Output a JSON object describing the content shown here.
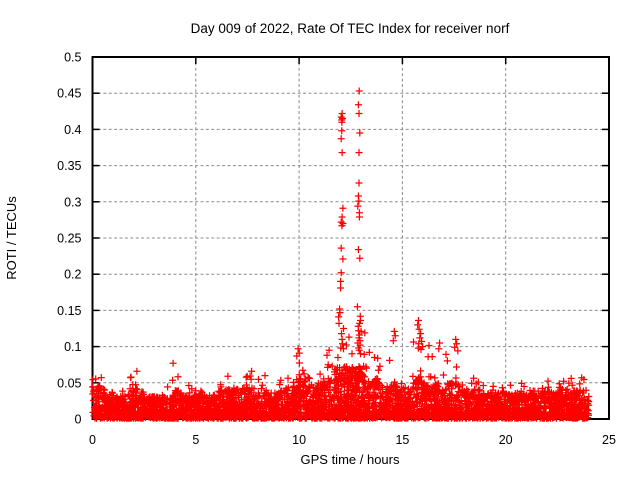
{
  "page": {
    "background_color": "#ffffff",
    "text_color": "#000000"
  },
  "chart_data": {
    "type": "scatter",
    "title": "Day 009 of 2022, Rate Of TEC Index for receiver norf",
    "xlabel": "GPS time / hours",
    "ylabel": "ROTI / TECUs",
    "xlim": [
      0,
      25
    ],
    "ylim": [
      0,
      0.5
    ],
    "xticks": [
      0,
      5,
      10,
      15,
      20,
      25
    ],
    "xtick_labels": [
      "0",
      "5",
      "10",
      "15",
      "20",
      "25"
    ],
    "yticks": [
      0,
      0.05,
      0.1,
      0.15,
      0.2,
      0.25,
      0.3,
      0.35,
      0.4,
      0.45,
      0.5
    ],
    "ytick_labels": [
      "0",
      "0.05",
      "0.1",
      "0.15",
      "0.2",
      "0.25",
      "0.3",
      "0.35",
      "0.4",
      "0.45",
      "0.5"
    ],
    "legend": {
      "show": false
    },
    "grid": {
      "show": true,
      "style": "dashed",
      "color": "#8c8c8c"
    },
    "border_color": "#000000",
    "marker": {
      "shape": "plus",
      "color": "#ff0000",
      "size": 7
    },
    "series_name": "ROTI",
    "seed": 20220109,
    "band_density_per_hour": 160,
    "tip_density_per_hour": 6,
    "band_segments": [
      [
        0.0,
        0.6,
        0.045,
        0.058
      ],
      [
        0.6,
        1.8,
        0.032,
        0.05
      ],
      [
        1.8,
        2.5,
        0.042,
        0.06
      ],
      [
        2.5,
        3.8,
        0.03,
        0.046
      ],
      [
        3.8,
        4.3,
        0.04,
        0.062
      ],
      [
        4.3,
        6.1,
        0.032,
        0.05
      ],
      [
        6.1,
        7.9,
        0.042,
        0.062
      ],
      [
        7.9,
        9.0,
        0.035,
        0.055
      ],
      [
        9.0,
        9.8,
        0.045,
        0.066
      ],
      [
        9.8,
        10.4,
        0.055,
        0.088
      ],
      [
        10.4,
        11.1,
        0.048,
        0.072
      ],
      [
        11.1,
        11.7,
        0.058,
        0.092
      ],
      [
        11.7,
        13.3,
        0.072,
        0.125
      ],
      [
        13.3,
        14.0,
        0.055,
        0.085
      ],
      [
        14.0,
        14.9,
        0.045,
        0.1
      ],
      [
        14.9,
        15.5,
        0.042,
        0.075
      ],
      [
        15.5,
        16.3,
        0.058,
        0.112
      ],
      [
        16.3,
        17.1,
        0.048,
        0.09
      ],
      [
        17.1,
        17.9,
        0.05,
        0.1
      ],
      [
        17.9,
        18.8,
        0.04,
        0.06
      ],
      [
        18.8,
        20.6,
        0.035,
        0.052
      ],
      [
        20.6,
        22.2,
        0.038,
        0.055
      ],
      [
        22.2,
        24.05,
        0.04,
        0.058
      ]
    ],
    "spike_points": [
      [
        12.91,
        0.453
      ],
      [
        12.87,
        0.434
      ],
      [
        12.9,
        0.422
      ],
      [
        12.94,
        0.395
      ],
      [
        12.9,
        0.368
      ],
      [
        12.9,
        0.326
      ],
      [
        12.87,
        0.308
      ],
      [
        12.89,
        0.301
      ],
      [
        12.84,
        0.294
      ],
      [
        12.92,
        0.285
      ],
      [
        12.92,
        0.279
      ],
      [
        12.87,
        0.234
      ],
      [
        12.94,
        0.222
      ],
      [
        12.82,
        0.155
      ],
      [
        12.97,
        0.136
      ],
      [
        13.0,
        0.121
      ],
      [
        12.92,
        0.116
      ],
      [
        12.9,
        0.112
      ],
      [
        12.95,
        0.108
      ],
      [
        12.08,
        0.422
      ],
      [
        12.04,
        0.417
      ],
      [
        12.1,
        0.415
      ],
      [
        12.06,
        0.413
      ],
      [
        12.07,
        0.41
      ],
      [
        12.06,
        0.398
      ],
      [
        12.04,
        0.387
      ],
      [
        12.08,
        0.368
      ],
      [
        12.12,
        0.291
      ],
      [
        12.08,
        0.279
      ],
      [
        12.04,
        0.272
      ],
      [
        12.12,
        0.27
      ],
      [
        12.07,
        0.267
      ],
      [
        12.04,
        0.236
      ],
      [
        12.12,
        0.221
      ],
      [
        12.04,
        0.202
      ],
      [
        12.01,
        0.19
      ],
      [
        12.01,
        0.181
      ],
      [
        11.96,
        0.152
      ],
      [
        11.91,
        0.141
      ],
      [
        11.93,
        0.132
      ],
      [
        11.98,
        0.147
      ],
      [
        12.05,
        0.118
      ],
      [
        12.08,
        0.11
      ],
      [
        12.1,
        0.104
      ],
      [
        12.02,
        0.098
      ],
      [
        12.15,
        0.125
      ],
      [
        12.86,
        0.128
      ],
      [
        12.88,
        0.122
      ],
      [
        12.93,
        0.132
      ],
      [
        12.96,
        0.142
      ],
      [
        12.84,
        0.105
      ],
      [
        12.88,
        0.098
      ],
      [
        12.91,
        0.095
      ],
      [
        12.97,
        0.09
      ],
      [
        14.61,
        0.121
      ],
      [
        14.65,
        0.115
      ],
      [
        14.56,
        0.108
      ],
      [
        15.78,
        0.136
      ],
      [
        15.74,
        0.13
      ],
      [
        15.81,
        0.124
      ],
      [
        15.88,
        0.118
      ],
      [
        15.84,
        0.112
      ],
      [
        15.93,
        0.107
      ],
      [
        15.79,
        0.104
      ],
      [
        15.98,
        0.1
      ],
      [
        15.9,
        0.096
      ],
      [
        16.8,
        0.105
      ],
      [
        16.76,
        0.097
      ],
      [
        17.58,
        0.11
      ],
      [
        17.63,
        0.104
      ],
      [
        17.53,
        0.099
      ],
      [
        17.68,
        0.094
      ],
      [
        9.95,
        0.097
      ],
      [
        10.01,
        0.091
      ],
      [
        9.89,
        0.087
      ],
      [
        3.9,
        0.077
      ],
      [
        2.15,
        0.066
      ],
      [
        7.7,
        0.066
      ],
      [
        8.35,
        0.06
      ],
      [
        23.68,
        0.057
      ],
      [
        11.35,
        0.088
      ],
      [
        11.45,
        0.095
      ],
      [
        13.4,
        0.092
      ],
      [
        13.65,
        0.085
      ]
    ]
  }
}
